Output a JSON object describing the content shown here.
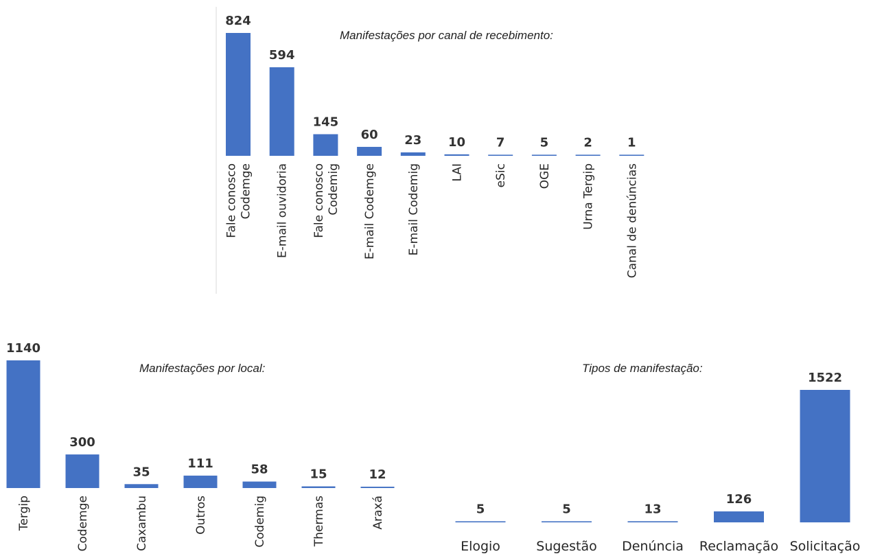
{
  "chart_data": [
    {
      "type": "bar",
      "title": "Manifestações por canal de recebimento:",
      "categories": [
        "Fale conosco\nCodemge",
        "E-mail ouvidoria",
        "Fale conosco\nCodemig",
        "E-mail Codemge",
        "E-mail Codemig",
        "LAI",
        "eSic",
        "OGE",
        "Urna Tergip",
        "Canal de denúncias"
      ],
      "values": [
        824,
        594,
        145,
        60,
        23,
        10,
        7,
        5,
        2,
        1
      ],
      "data_labels": [
        "824",
        "594",
        "145",
        "60",
        "23",
        "10",
        "7",
        "5",
        "2",
        "1"
      ],
      "bar_color": "#4472c4",
      "grid": false,
      "legend": "none"
    },
    {
      "type": "bar",
      "title": "Manifestações por local:",
      "categories": [
        "Tergip",
        "Codemge",
        "Caxambu",
        "Outros",
        "Codemig",
        "Thermas",
        "Araxá"
      ],
      "values": [
        1140,
        300,
        35,
        111,
        58,
        15,
        12
      ],
      "data_labels": [
        "1140",
        "300",
        "35",
        "111",
        "58",
        "15",
        "12"
      ],
      "bar_color": "#4472c4",
      "grid": false,
      "legend": "none"
    },
    {
      "type": "bar",
      "title": "Tipos de manifestação:",
      "categories": [
        "Elogio",
        "Sugestão",
        "Denúncia",
        "Reclamação",
        "Solicitação"
      ],
      "values": [
        5,
        5,
        13,
        126,
        1522
      ],
      "data_labels": [
        "5",
        "5",
        "13",
        "126",
        "1522"
      ],
      "bar_color": "#4472c4",
      "grid": false,
      "legend": "none"
    }
  ]
}
